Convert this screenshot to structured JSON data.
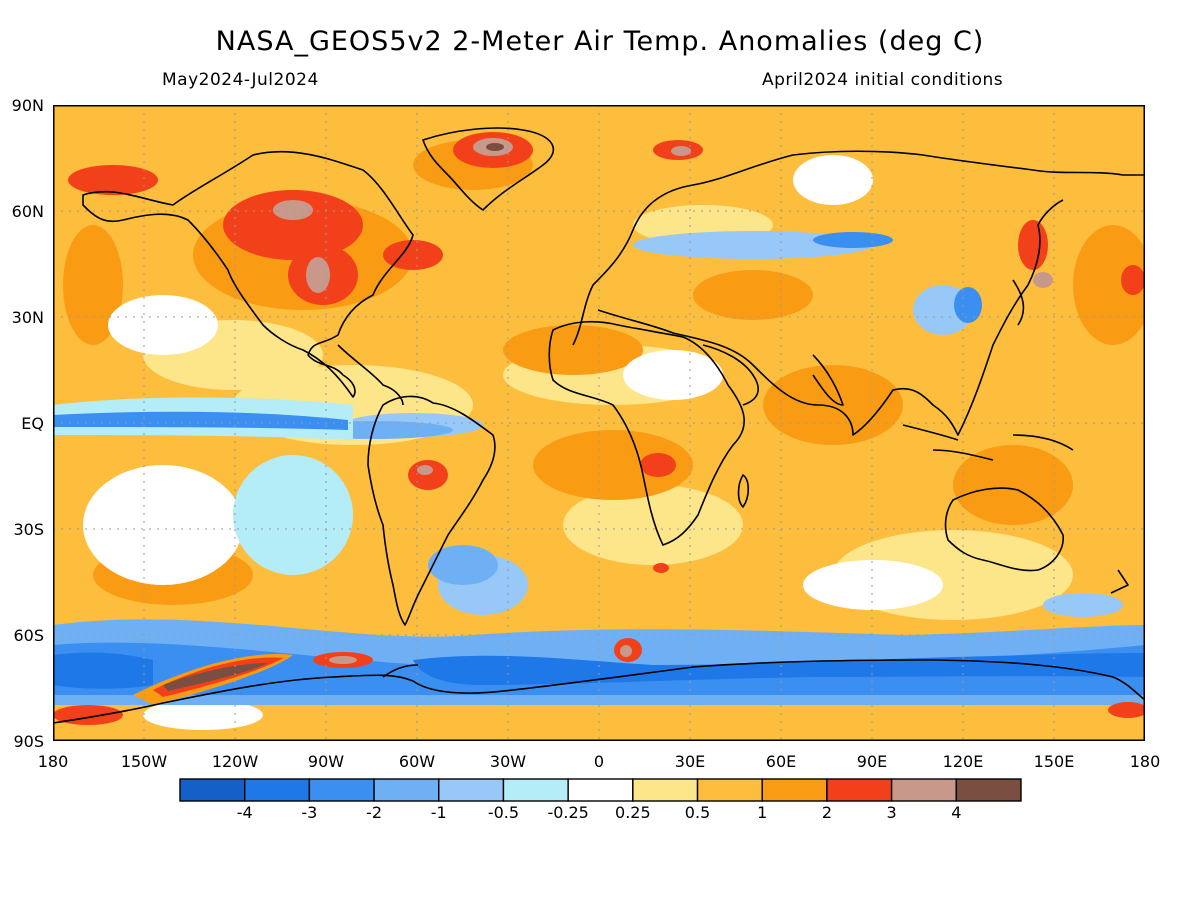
{
  "title": "NASA_GEOS5v2 2-Meter Air Temp. Anomalies (deg C)",
  "period": "May2024-Jul2024",
  "init": "April2024 initial conditions",
  "lat_labels": [
    "90N",
    "60N",
    "30N",
    "EQ",
    "30S",
    "60S",
    "90S"
  ],
  "lon_labels": [
    "180",
    "150W",
    "120W",
    "90W",
    "60W",
    "30W",
    "0",
    "30E",
    "60E",
    "90E",
    "120E",
    "150E",
    "180"
  ],
  "colorbar": {
    "colors": [
      "#1560c8",
      "#1f78e8",
      "#3a8ff0",
      "#6fb0f5",
      "#97c8f7",
      "#b4ecf8",
      "#ffffff",
      "#fde58a",
      "#fdbe3e",
      "#f99c14",
      "#f2401b",
      "#c8998a",
      "#7a4e40"
    ],
    "labels": [
      "-4",
      "-3",
      "-2",
      "-1",
      "-0.5",
      "-0.25",
      "0.25",
      "0.5",
      "1",
      "2",
      "3",
      "4"
    ]
  },
  "map_colors": {
    "background": "#fdbe3e",
    "light_warm": "#fde58a",
    "warm": "#f99c14",
    "hot": "#f2401b",
    "hotter": "#c8998a",
    "hottest": "#7a4e40",
    "white": "#ffffff",
    "cool_light": "#b4ecf8",
    "cool": "#97c8f7",
    "cold": "#6fb0f5",
    "colder": "#3a8ff0",
    "coldest": "#1f78e8"
  }
}
